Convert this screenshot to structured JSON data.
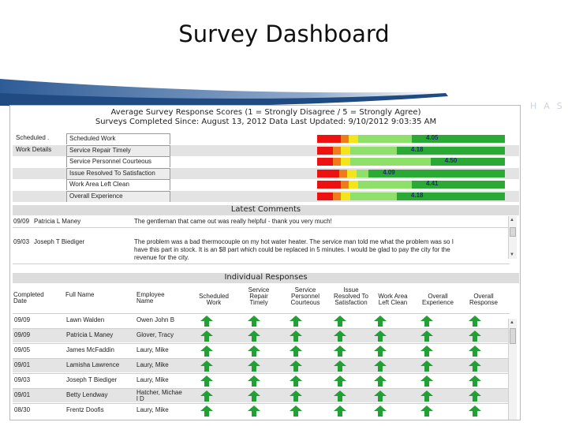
{
  "slide": {
    "title": "Survey Dashboard",
    "watermark": "HASS"
  },
  "dashboard": {
    "title_line1": "Average Survey Response Scores (1 = Strongly Disagree / 5 = Strongly Agree)",
    "title_line2": "Surveys Completed Since: August 13, 2012 Data Last Updated: 9/10/2012 9:03:35 AM",
    "groups": [
      "Scheduled .",
      "Work Details"
    ],
    "scores": [
      {
        "label": "Scheduled Work",
        "value": "4.05",
        "fraction": 0.63
      },
      {
        "label": "Service Repair Timely",
        "value": "4.18",
        "fraction": 0.55
      },
      {
        "label": "Service Personnel Courteous",
        "value": "4.50",
        "fraction": 0.73
      },
      {
        "label": "Issue Resolved To Satisfaction",
        "value": "4.09",
        "fraction": 0.4
      },
      {
        "label": "Work Area Left Clean",
        "value": "4.41",
        "fraction": 0.63
      },
      {
        "label": "Overall Experience",
        "value": "4.18",
        "fraction": 0.55
      }
    ],
    "colors": {
      "red": "#ee1111",
      "orange": "#f07b1a",
      "yellow": "#f4e41c",
      "light_green": "#8fe06b",
      "green": "#2aaa35",
      "value_text": "#232a6e"
    }
  },
  "comments": {
    "heading": "Latest Comments",
    "items": [
      {
        "date": "09/09",
        "name": "Patricia L Maney",
        "lines": [
          "The gentleman that came out was really helpful - thank you very much!"
        ]
      },
      {
        "date": "09/03",
        "name": "Joseph T Biediger",
        "lines": [
          "The problem was a bad thermocouple on my hot water heater. The service man told me what the problem was so I",
          "have this part in stock. It is an $8 part which could be replaced in 5 minutes. I would be glad to pay the city for the",
          "revenue for the city."
        ]
      }
    ]
  },
  "responses": {
    "heading": "Individual Responses",
    "columns": [
      {
        "key": "completed_date",
        "lines": [
          "Completed",
          "Date"
        ]
      },
      {
        "key": "full_name",
        "lines": [
          "Full Name"
        ]
      },
      {
        "key": "employee_name",
        "lines": [
          "Employee",
          "Name"
        ]
      },
      {
        "key": "scheduled_work",
        "lines": [
          "Scheduled",
          "Work"
        ]
      },
      {
        "key": "service_repair_timely",
        "lines": [
          "Service",
          "Repair",
          "Timely"
        ]
      },
      {
        "key": "service_personnel_courteous",
        "lines": [
          "Service",
          "Personnel",
          "Courteous"
        ]
      },
      {
        "key": "issue_resolved",
        "lines": [
          "Issue",
          "Resolved To",
          "Satisfaction"
        ]
      },
      {
        "key": "work_area_left_clean",
        "lines": [
          "Work Area",
          "Left Clean"
        ]
      },
      {
        "key": "overall_experience",
        "lines": [
          "Overall",
          "Experience"
        ]
      },
      {
        "key": "overall_response",
        "lines": [
          "Overall",
          "Response"
        ]
      }
    ],
    "rows": [
      {
        "date": "09/09",
        "name": "Lawn Walden",
        "employee": [
          "Owen John B"
        ]
      },
      {
        "date": "09/09",
        "name": "Patricia L Maney",
        "employee": [
          "Glover, Tracy"
        ]
      },
      {
        "date": "09/05",
        "name": "James McFaddin",
        "employee": [
          "Laury, Mike"
        ]
      },
      {
        "date": "09/01",
        "name": "Lamisha Lawrence",
        "employee": [
          "Laury, Mike"
        ]
      },
      {
        "date": "09/03",
        "name": "Joseph T Biediger",
        "employee": [
          "Laury, Mike"
        ]
      },
      {
        "date": "09/01",
        "name": "Betty Lendway",
        "employee": [
          "Hatcher, Michae",
          "l D"
        ]
      },
      {
        "date": "08/30",
        "name": "Frentz Doofis",
        "employee": [
          "Laury, Mike"
        ]
      }
    ],
    "arrow_icon": "up-arrow-green-icon",
    "arrow_color": "#22a035"
  }
}
